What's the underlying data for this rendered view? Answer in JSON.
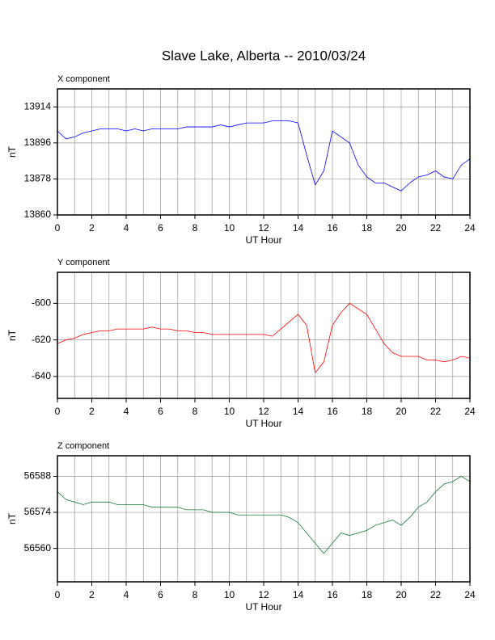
{
  "title": "Slave Lake, Alberta -- 2010/03/24",
  "chart_data": [
    {
      "type": "line",
      "title": "X component",
      "xlabel": "UT Hour",
      "ylabel": "nT",
      "color": "#0000ff",
      "grid": true,
      "xlim": [
        0,
        24
      ],
      "xticks": [
        0,
        2,
        4,
        6,
        8,
        10,
        12,
        14,
        16,
        18,
        20,
        22,
        24
      ],
      "xminorticks": [
        1,
        3,
        5,
        7,
        9,
        11,
        13,
        15,
        17,
        19,
        21,
        23
      ],
      "ylim": [
        13860,
        13923
      ],
      "yticks": [
        13860,
        13878,
        13896,
        13914
      ],
      "x": [
        0,
        0.5,
        1,
        1.5,
        2,
        2.5,
        3,
        3.5,
        4,
        4.5,
        5,
        5.5,
        6,
        6.5,
        7,
        7.5,
        8,
        8.5,
        9,
        9.5,
        10,
        10.5,
        11,
        11.5,
        12,
        12.5,
        13,
        13.5,
        14,
        14.5,
        15,
        15.5,
        16,
        16.5,
        17,
        17.5,
        18,
        18.5,
        19,
        19.5,
        20,
        20.5,
        21,
        21.5,
        22,
        22.5,
        23,
        23.5,
        24
      ],
      "values": [
        13902,
        13898,
        13899,
        13901,
        13902,
        13903,
        13903,
        13903,
        13902,
        13903,
        13902,
        13903,
        13903,
        13903,
        13903,
        13904,
        13904,
        13904,
        13904,
        13905,
        13904,
        13905,
        13906,
        13906,
        13906,
        13907,
        13907,
        13907,
        13906,
        13890,
        13875,
        13882,
        13902,
        13899,
        13896,
        13885,
        13879,
        13876,
        13876,
        13874,
        13872,
        13876,
        13879,
        13880,
        13882,
        13879,
        13878,
        13885,
        13888
      ]
    },
    {
      "type": "line",
      "title": "Y component",
      "xlabel": "UT Hour",
      "ylabel": "nT",
      "color": "#ff0000",
      "grid": true,
      "xlim": [
        0,
        24
      ],
      "xticks": [
        0,
        2,
        4,
        6,
        8,
        10,
        12,
        14,
        16,
        18,
        20,
        22,
        24
      ],
      "xminorticks": [
        1,
        3,
        5,
        7,
        9,
        11,
        13,
        15,
        17,
        19,
        21,
        23
      ],
      "ylim": [
        -652,
        -583
      ],
      "yticks": [
        -640,
        -620,
        -600
      ],
      "x": [
        0,
        0.5,
        1,
        1.5,
        2,
        2.5,
        3,
        3.5,
        4,
        4.5,
        5,
        5.5,
        6,
        6.5,
        7,
        7.5,
        8,
        8.5,
        9,
        9.5,
        10,
        10.5,
        11,
        11.5,
        12,
        12.5,
        13,
        13.5,
        14,
        14.5,
        15,
        15.5,
        16,
        16.5,
        17,
        17.5,
        18,
        18.5,
        19,
        19.5,
        20,
        20.5,
        21,
        21.5,
        22,
        22.5,
        23,
        23.5,
        24
      ],
      "values": [
        -622,
        -620,
        -619,
        -617,
        -616,
        -615,
        -615,
        -614,
        -614,
        -614,
        -614,
        -613,
        -614,
        -614,
        -615,
        -615,
        -616,
        -616,
        -617,
        -617,
        -617,
        -617,
        -617,
        -617,
        -617,
        -618,
        -614,
        -610,
        -606,
        -612,
        -638,
        -632,
        -612,
        -605,
        -600,
        -603,
        -606,
        -614,
        -622,
        -627,
        -629,
        -629,
        -629,
        -631,
        -631,
        -632,
        -631,
        -629,
        -630
      ]
    },
    {
      "type": "line",
      "title": "Z component",
      "xlabel": "UT Hour",
      "ylabel": "nT",
      "color": "#1a7a3a",
      "grid": true,
      "xlim": [
        0,
        24
      ],
      "xticks": [
        0,
        2,
        4,
        6,
        8,
        10,
        12,
        14,
        16,
        18,
        20,
        22,
        24
      ],
      "xminorticks": [
        1,
        3,
        5,
        7,
        9,
        11,
        13,
        15,
        17,
        19,
        21,
        23
      ],
      "ylim": [
        56547,
        56596
      ],
      "yticks": [
        56560,
        56574,
        56588
      ],
      "x": [
        0,
        0.5,
        1,
        1.5,
        2,
        2.5,
        3,
        3.5,
        4,
        4.5,
        5,
        5.5,
        6,
        6.5,
        7,
        7.5,
        8,
        8.5,
        9,
        9.5,
        10,
        10.5,
        11,
        11.5,
        12,
        12.5,
        13,
        13.5,
        14,
        14.5,
        15,
        15.5,
        16,
        16.5,
        17,
        17.5,
        18,
        18.5,
        19,
        19.5,
        20,
        20.5,
        21,
        21.5,
        22,
        22.5,
        23,
        23.5,
        24
      ],
      "values": [
        56582,
        56579,
        56578,
        56577,
        56578,
        56578,
        56578,
        56577,
        56577,
        56577,
        56577,
        56576,
        56576,
        56576,
        56576,
        56575,
        56575,
        56575,
        56574,
        56574,
        56574,
        56573,
        56573,
        56573,
        56573,
        56573,
        56573,
        56572,
        56570,
        56566,
        56562,
        56558,
        56562,
        56566,
        56565,
        56566,
        56567,
        56569,
        56570,
        56571,
        56569,
        56572,
        56576,
        56578,
        56582,
        56585,
        56586,
        56588,
        56586
      ]
    }
  ]
}
